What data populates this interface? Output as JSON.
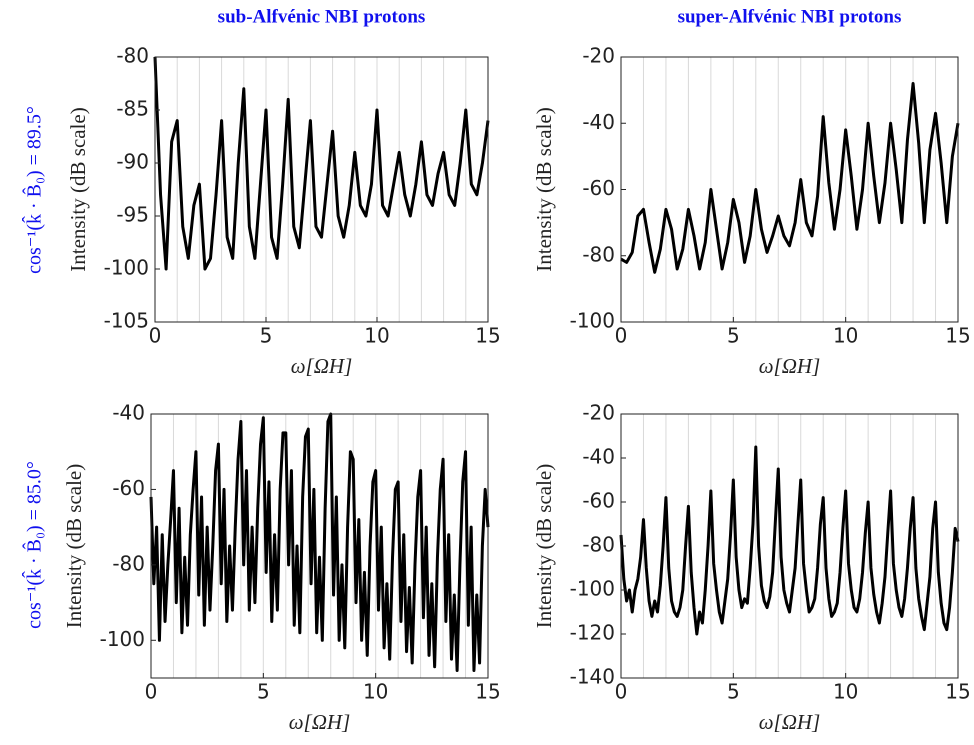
{
  "row_labels": [
    "cos⁻¹(k̂ · B̂₀) = 89.5°",
    "cos⁻¹(k̂ · B̂₀) = 85.0°"
  ],
  "chart_data": [
    {
      "type": "line",
      "title": "sub-Alfvénic NBI protons",
      "xlabel": "ω[ΩH]",
      "ylabel": "Intensity (dB scale)",
      "color": "#000000",
      "xlim": [
        0,
        15
      ],
      "xticks": [
        0,
        5,
        10,
        15
      ],
      "ylim": [
        -105,
        -80
      ],
      "yticks": [
        -105,
        -100,
        -95,
        -90,
        -85,
        -80
      ],
      "xgrid": [
        1,
        2,
        3,
        4,
        5,
        6,
        7,
        8,
        9,
        10,
        11,
        12,
        13,
        14
      ],
      "x": [
        0,
        0.25,
        0.5,
        0.75,
        1,
        1.25,
        1.5,
        1.75,
        2,
        2.25,
        2.5,
        2.75,
        3,
        3.25,
        3.5,
        3.75,
        4,
        4.25,
        4.5,
        4.75,
        5,
        5.25,
        5.5,
        5.75,
        6,
        6.25,
        6.5,
        6.75,
        7,
        7.25,
        7.5,
        7.75,
        8,
        8.25,
        8.5,
        8.75,
        9,
        9.25,
        9.5,
        9.75,
        10,
        10.25,
        10.5,
        10.75,
        11,
        11.25,
        11.5,
        11.75,
        12,
        12.25,
        12.5,
        12.75,
        13,
        13.25,
        13.5,
        13.75,
        14,
        14.25,
        14.5,
        14.75,
        15
      ],
      "values": [
        -80,
        -93,
        -100,
        -88,
        -86,
        -96,
        -99,
        -94,
        -92,
        -100,
        -99,
        -93,
        -86,
        -97,
        -99,
        -90,
        -83,
        -96,
        -99,
        -92,
        -85,
        -97,
        -99,
        -92,
        -84,
        -96,
        -98,
        -92,
        -86,
        -96,
        -97,
        -92,
        -87,
        -95,
        -97,
        -94,
        -89,
        -94,
        -95,
        -92,
        -85,
        -94,
        -95,
        -92,
        -89,
        -93,
        -95,
        -92,
        -88,
        -93,
        -94,
        -91,
        -89,
        -93,
        -94,
        -90,
        -85,
        -92,
        -93,
        -90,
        -86
      ]
    },
    {
      "type": "line",
      "title": "super-Alfvénic NBI protons",
      "xlabel": "ω[ΩH]",
      "ylabel": "Intensity (dB scale)",
      "color": "#000000",
      "xlim": [
        0,
        15
      ],
      "xticks": [
        0,
        5,
        10,
        15
      ],
      "ylim": [
        -100,
        -20
      ],
      "yticks": [
        -100,
        -80,
        -60,
        -40,
        -20
      ],
      "xgrid": [
        1,
        2,
        3,
        4,
        5,
        6,
        7,
        8,
        9,
        10,
        11,
        12,
        13,
        14
      ],
      "x": [
        0,
        0.25,
        0.5,
        0.75,
        1,
        1.25,
        1.5,
        1.75,
        2,
        2.25,
        2.5,
        2.75,
        3,
        3.25,
        3.5,
        3.75,
        4,
        4.25,
        4.5,
        4.75,
        5,
        5.25,
        5.5,
        5.75,
        6,
        6.25,
        6.5,
        6.75,
        7,
        7.25,
        7.5,
        7.75,
        8,
        8.25,
        8.5,
        8.75,
        9,
        9.25,
        9.5,
        9.75,
        10,
        10.25,
        10.5,
        10.75,
        11,
        11.25,
        11.5,
        11.75,
        12,
        12.25,
        12.5,
        12.75,
        13,
        13.25,
        13.5,
        13.75,
        14,
        14.25,
        14.5,
        14.75,
        15
      ],
      "values": [
        -81,
        -82,
        -79,
        -68,
        -66,
        -76,
        -85,
        -78,
        -66,
        -72,
        -84,
        -78,
        -66,
        -74,
        -84,
        -76,
        -60,
        -72,
        -84,
        -76,
        -63,
        -70,
        -82,
        -74,
        -60,
        -72,
        -79,
        -74,
        -68,
        -74,
        -77,
        -70,
        -57,
        -70,
        -74,
        -62,
        -38,
        -58,
        -72,
        -60,
        -42,
        -56,
        -72,
        -60,
        -40,
        -56,
        -70,
        -58,
        -40,
        -54,
        -70,
        -45,
        -28,
        -46,
        -70,
        -48,
        -37,
        -52,
        -70,
        -50,
        -40
      ]
    },
    {
      "type": "line",
      "xlabel": "ω[ΩH]",
      "ylabel": "Intensity (dB scale)",
      "color": "#000000",
      "xlim": [
        0,
        15
      ],
      "xticks": [
        0,
        5,
        10,
        15
      ],
      "ylim": [
        -110,
        -40
      ],
      "yticks": [
        -100,
        -80,
        -60,
        -40
      ],
      "xgrid": [
        1,
        2,
        3,
        4,
        5,
        6,
        7,
        8,
        9,
        10,
        11,
        12,
        13,
        14
      ],
      "x": [
        0,
        0.125,
        0.25,
        0.375,
        0.5,
        0.625,
        0.75,
        0.875,
        1,
        1.125,
        1.25,
        1.375,
        1.5,
        1.625,
        1.75,
        1.875,
        2,
        2.125,
        2.25,
        2.375,
        2.5,
        2.625,
        2.75,
        2.875,
        3,
        3.125,
        3.25,
        3.375,
        3.5,
        3.625,
        3.75,
        3.875,
        4,
        4.125,
        4.25,
        4.375,
        4.5,
        4.625,
        4.75,
        4.875,
        5,
        5.125,
        5.25,
        5.375,
        5.5,
        5.625,
        5.75,
        5.875,
        6,
        6.125,
        6.25,
        6.375,
        6.5,
        6.625,
        6.75,
        6.875,
        7,
        7.125,
        7.25,
        7.375,
        7.5,
        7.625,
        7.75,
        7.875,
        8,
        8.125,
        8.25,
        8.375,
        8.5,
        8.625,
        8.75,
        8.875,
        9,
        9.125,
        9.25,
        9.375,
        9.5,
        9.625,
        9.75,
        9.875,
        10,
        10.125,
        10.25,
        10.375,
        10.5,
        10.625,
        10.75,
        10.875,
        11,
        11.125,
        11.25,
        11.375,
        11.5,
        11.625,
        11.75,
        11.875,
        12,
        12.125,
        12.25,
        12.375,
        12.5,
        12.625,
        12.75,
        12.875,
        13,
        13.125,
        13.25,
        13.375,
        13.5,
        13.625,
        13.75,
        13.875,
        14,
        14.125,
        14.25,
        14.375,
        14.5,
        14.625,
        14.75,
        14.875,
        15
      ],
      "values": [
        -62,
        -85,
        -70,
        -100,
        -72,
        -95,
        -80,
        -68,
        -55,
        -90,
        -65,
        -98,
        -78,
        -96,
        -72,
        -60,
        -50,
        -88,
        -62,
        -96,
        -70,
        -92,
        -75,
        -55,
        -48,
        -85,
        -60,
        -95,
        -75,
        -92,
        -70,
        -52,
        -42,
        -80,
        -55,
        -92,
        -70,
        -90,
        -65,
        -48,
        -41,
        -82,
        -58,
        -95,
        -72,
        -92,
        -60,
        -45,
        -45,
        -80,
        -55,
        -96,
        -75,
        -98,
        -62,
        -46,
        -44,
        -85,
        -60,
        -98,
        -78,
        -100,
        -65,
        -42,
        -40,
        -88,
        -62,
        -100,
        -80,
        -102,
        -70,
        -50,
        -52,
        -90,
        -68,
        -100,
        -82,
        -104,
        -75,
        -58,
        -55,
        -92,
        -70,
        -102,
        -85,
        -105,
        -78,
        -60,
        -58,
        -95,
        -72,
        -103,
        -86,
        -106,
        -80,
        -62,
        -55,
        -94,
        -70,
        -104,
        -85,
        -107,
        -78,
        -60,
        -52,
        -95,
        -72,
        -105,
        -88,
        -108,
        -80,
        -58,
        -50,
        -96,
        -70,
        -108,
        -88,
        -106,
        -75,
        -60,
        -70
      ]
    },
    {
      "type": "line",
      "xlabel": "ω[ΩH]",
      "ylabel": "Intensity (dB scale)",
      "color": "#000000",
      "xlim": [
        0,
        15
      ],
      "xticks": [
        0,
        5,
        10,
        15
      ],
      "ylim": [
        -140,
        -20
      ],
      "yticks": [
        -140,
        -120,
        -100,
        -80,
        -60,
        -40,
        -20
      ],
      "xgrid": [
        1,
        2,
        3,
        4,
        5,
        6,
        7,
        8,
        9,
        10,
        11,
        12,
        13,
        14
      ],
      "x": [
        0,
        0.125,
        0.25,
        0.375,
        0.5,
        0.625,
        0.75,
        0.875,
        1,
        1.125,
        1.25,
        1.375,
        1.5,
        1.625,
        1.75,
        1.875,
        2,
        2.125,
        2.25,
        2.375,
        2.5,
        2.625,
        2.75,
        2.875,
        3,
        3.125,
        3.25,
        3.375,
        3.5,
        3.625,
        3.75,
        3.875,
        4,
        4.125,
        4.25,
        4.375,
        4.5,
        4.625,
        4.75,
        4.875,
        5,
        5.125,
        5.25,
        5.375,
        5.5,
        5.625,
        5.75,
        5.875,
        6,
        6.125,
        6.25,
        6.375,
        6.5,
        6.625,
        6.75,
        6.875,
        7,
        7.125,
        7.25,
        7.375,
        7.5,
        7.625,
        7.75,
        7.875,
        8,
        8.125,
        8.25,
        8.375,
        8.5,
        8.625,
        8.75,
        8.875,
        9,
        9.125,
        9.25,
        9.375,
        9.5,
        9.625,
        9.75,
        9.875,
        10,
        10.125,
        10.25,
        10.375,
        10.5,
        10.625,
        10.75,
        10.875,
        11,
        11.125,
        11.25,
        11.375,
        11.5,
        11.625,
        11.75,
        11.875,
        12,
        12.125,
        12.25,
        12.375,
        12.5,
        12.625,
        12.75,
        12.875,
        13,
        13.125,
        13.25,
        13.375,
        13.5,
        13.625,
        13.75,
        13.875,
        14,
        14.125,
        14.25,
        14.375,
        14.5,
        14.625,
        14.75,
        14.875,
        15
      ],
      "values": [
        -75,
        -95,
        -105,
        -100,
        -110,
        -100,
        -95,
        -85,
        -68,
        -90,
        -105,
        -112,
        -105,
        -110,
        -98,
        -80,
        -58,
        -90,
        -105,
        -110,
        -112,
        -108,
        -100,
        -80,
        -62,
        -92,
        -108,
        -120,
        -110,
        -115,
        -100,
        -80,
        -55,
        -88,
        -100,
        -110,
        -115,
        -105,
        -95,
        -75,
        -50,
        -85,
        -100,
        -108,
        -104,
        -106,
        -90,
        -70,
        -35,
        -80,
        -98,
        -105,
        -108,
        -103,
        -92,
        -68,
        -45,
        -85,
        -100,
        -106,
        -110,
        -100,
        -90,
        -70,
        -50,
        -88,
        -100,
        -110,
        -108,
        -104,
        -90,
        -70,
        -58,
        -90,
        -104,
        -112,
        -110,
        -106,
        -92,
        -72,
        -55,
        -88,
        -100,
        -108,
        -110,
        -104,
        -92,
        -74,
        -60,
        -90,
        -102,
        -110,
        -115,
        -106,
        -94,
        -74,
        -55,
        -88,
        -100,
        -108,
        -112,
        -104,
        -90,
        -72,
        -58,
        -90,
        -104,
        -112,
        -118,
        -106,
        -94,
        -72,
        -60,
        -92,
        -106,
        -115,
        -118,
        -108,
        -92,
        -72,
        -78
      ]
    }
  ]
}
